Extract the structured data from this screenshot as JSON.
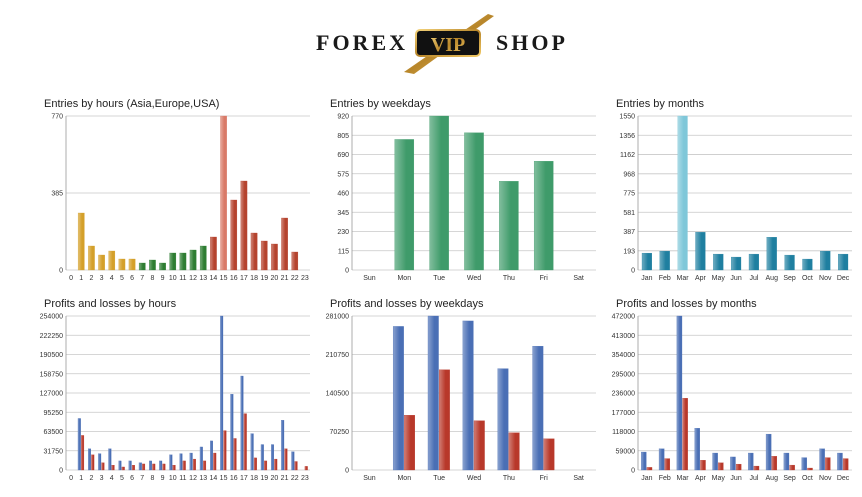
{
  "brand": {
    "left": "FOREX",
    "badge": "VIP",
    "right": "SHOP"
  },
  "colors": {
    "gold": "#d4a02a",
    "green_dark": "#2e7d32",
    "red_brown": "#b5432e",
    "salmon": "#d97a68",
    "emerald": "#3f9b6a",
    "teal": "#1f7fa0",
    "teal_light": "#7fc7d9",
    "blue": "#4a6fb5",
    "blue_light": "#8eaee0",
    "red": "#b8382a"
  },
  "chart_data": [
    {
      "id": "entries-hours",
      "type": "bar",
      "title": "Entries by hours (Asia,Europe,USA)",
      "categories": [
        "0",
        "1",
        "2",
        "3",
        "4",
        "5",
        "6",
        "7",
        "8",
        "9",
        "10",
        "11",
        "12",
        "13",
        "14",
        "15",
        "16",
        "17",
        "18",
        "19",
        "20",
        "21",
        "22",
        "23"
      ],
      "values": [
        0,
        285,
        120,
        75,
        95,
        55,
        55,
        35,
        50,
        35,
        85,
        85,
        100,
        120,
        165,
        770,
        350,
        445,
        185,
        145,
        130,
        260,
        90,
        0
      ],
      "yticks": [
        "0",
        "385",
        "770"
      ],
      "ylim": [
        0,
        770
      ],
      "bar_colors": [
        "#d4a02a",
        "#d4a02a",
        "#d4a02a",
        "#d4a02a",
        "#d4a02a",
        "#d4a02a",
        "#d4a02a",
        "#2e7d32",
        "#2e7d32",
        "#2e7d32",
        "#2e7d32",
        "#2e7d32",
        "#2e7d32",
        "#2e7d32",
        "#b5432e",
        "#d97a68",
        "#b5432e",
        "#b5432e",
        "#b5432e",
        "#b5432e",
        "#b5432e",
        "#b5432e",
        "#b5432e",
        "#b5432e"
      ]
    },
    {
      "id": "entries-weekdays",
      "type": "bar",
      "title": "Entries by weekdays",
      "categories": [
        "Sun",
        "Mon",
        "Tue",
        "Wed",
        "Thu",
        "Fri",
        "Sat"
      ],
      "values": [
        0,
        780,
        920,
        820,
        530,
        650,
        0
      ],
      "yticks": [
        "0",
        "115",
        "230",
        "345",
        "460",
        "575",
        "690",
        "805",
        "920"
      ],
      "ylim": [
        0,
        920
      ],
      "bar_colors": [
        "#3f9b6a",
        "#3f9b6a",
        "#3f9b6a",
        "#3f9b6a",
        "#3f9b6a",
        "#3f9b6a",
        "#3f9b6a"
      ]
    },
    {
      "id": "entries-months",
      "type": "bar",
      "title": "Entries by months",
      "categories": [
        "Jan",
        "Feb",
        "Mar",
        "Apr",
        "May",
        "Jun",
        "Jul",
        "Aug",
        "Sep",
        "Oct",
        "Nov",
        "Dec"
      ],
      "values": [
        170,
        190,
        1550,
        380,
        160,
        130,
        160,
        330,
        150,
        110,
        190,
        160
      ],
      "yticks": [
        "0",
        "193",
        "387",
        "581",
        "775",
        "968",
        "1162",
        "1356",
        "1550"
      ],
      "ylim": [
        0,
        1550
      ],
      "bar_colors": [
        "#1f7fa0",
        "#1f7fa0",
        "#7fc7d9",
        "#1f7fa0",
        "#1f7fa0",
        "#1f7fa0",
        "#1f7fa0",
        "#1f7fa0",
        "#1f7fa0",
        "#1f7fa0",
        "#1f7fa0",
        "#1f7fa0"
      ]
    },
    {
      "id": "pl-hours",
      "type": "bar",
      "title": "Profits and losses by hours",
      "categories": [
        "0",
        "1",
        "2",
        "3",
        "4",
        "5",
        "6",
        "7",
        "8",
        "9",
        "10",
        "11",
        "12",
        "13",
        "14",
        "15",
        "16",
        "17",
        "18",
        "19",
        "20",
        "21",
        "22",
        "23"
      ],
      "series": [
        {
          "color": "#4a6fb5",
          "values": [
            0,
            85000,
            35000,
            27000,
            35000,
            15000,
            15000,
            12000,
            15000,
            15000,
            25000,
            27000,
            28000,
            38000,
            48000,
            254000,
            125000,
            155000,
            60000,
            42000,
            42000,
            82000,
            30000,
            0
          ]
        },
        {
          "color": "#b8382a",
          "values": [
            0,
            57000,
            25000,
            12000,
            8000,
            5000,
            8000,
            10000,
            10000,
            10000,
            8000,
            15000,
            18000,
            15000,
            28000,
            65000,
            52000,
            93000,
            20000,
            15000,
            18000,
            35000,
            14000,
            6000
          ]
        }
      ],
      "yticks": [
        "0",
        "31750",
        "63500",
        "95250",
        "127000",
        "158750",
        "190500",
        "222250",
        "254000"
      ],
      "ylim": [
        0,
        254000
      ]
    },
    {
      "id": "pl-weekdays",
      "type": "bar",
      "title": "Profits and losses by weekdays",
      "categories": [
        "Sun",
        "Mon",
        "Tue",
        "Wed",
        "Thu",
        "Fri",
        "Sat"
      ],
      "series": [
        {
          "color": "#4a6fb5",
          "values": [
            0,
            262000,
            281000,
            272000,
            185000,
            226000,
            0
          ]
        },
        {
          "color": "#b8382a",
          "values": [
            0,
            100000,
            183000,
            90000,
            68000,
            57000,
            0
          ]
        }
      ],
      "yticks": [
        "0",
        "70250",
        "140500",
        "210750",
        "281000"
      ],
      "ylim": [
        0,
        281000
      ]
    },
    {
      "id": "pl-months",
      "type": "bar",
      "title": "Profits and losses by months",
      "categories": [
        "Jan",
        "Feb",
        "Mar",
        "Apr",
        "May",
        "Jun",
        "Jul",
        "Aug",
        "Sep",
        "Oct",
        "Nov",
        "Dec"
      ],
      "series": [
        {
          "color": "#4a6fb5",
          "values": [
            55000,
            65000,
            472000,
            128000,
            52000,
            40000,
            52000,
            110000,
            52000,
            38000,
            65000,
            52000
          ]
        },
        {
          "color": "#b8382a",
          "values": [
            8000,
            35000,
            220000,
            30000,
            22000,
            18000,
            12000,
            42000,
            15000,
            6000,
            38000,
            35000
          ]
        }
      ],
      "yticks": [
        "0",
        "59000",
        "118000",
        "177000",
        "236000",
        "295000",
        "354000",
        "413000",
        "472000"
      ],
      "ylim": [
        0,
        472000
      ]
    }
  ]
}
